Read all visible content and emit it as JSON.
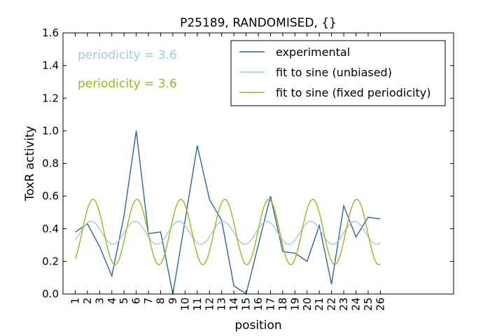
{
  "chart_data": {
    "type": "line",
    "title": "P25189, RANDOMISED, {}",
    "xlabel": "position",
    "ylabel": "ToxR activity",
    "xlim": [
      0,
      32
    ],
    "ylim": [
      0.0,
      1.6
    ],
    "x_ticks": [
      1,
      2,
      3,
      4,
      5,
      6,
      7,
      8,
      9,
      10,
      11,
      12,
      13,
      14,
      15,
      16,
      17,
      18,
      19,
      20,
      21,
      22,
      23,
      24,
      25,
      26
    ],
    "x_tick_labels": [
      "1",
      "2",
      "3",
      "4",
      "5",
      "6",
      "7",
      "8",
      "9",
      "10",
      "11",
      "12",
      "13",
      "14",
      "15",
      "16",
      "17",
      "18",
      "19",
      "20",
      "21",
      "22",
      "23",
      "24",
      "25",
      "26"
    ],
    "y_ticks": [
      0.0,
      0.2,
      0.4,
      0.6,
      0.8,
      1.0,
      1.2,
      1.4,
      1.6
    ],
    "y_tick_labels": [
      "0.0",
      "0.2",
      "0.4",
      "0.6",
      "0.8",
      "1.0",
      "1.2",
      "1.4",
      "1.6"
    ],
    "grid": false,
    "legend_placement": "top-right",
    "annotations": [
      {
        "text": "periodicity = 3.6",
        "color": "#9ecae1"
      },
      {
        "text": "periodicity = 3.6",
        "color": "#a1b41a"
      }
    ],
    "series": [
      {
        "name": "experimental",
        "color": "#2a64a6",
        "x": [
          1,
          2,
          3,
          4,
          5,
          6,
          7,
          8,
          9,
          10,
          11,
          12,
          13,
          14,
          15,
          16,
          17,
          18,
          19,
          20,
          21,
          22,
          23,
          24,
          25,
          26
        ],
        "values": [
          0.38,
          0.43,
          0.29,
          0.11,
          0.48,
          1.0,
          0.37,
          0.38,
          0.0,
          0.45,
          0.91,
          0.58,
          0.45,
          0.05,
          0.0,
          0.3,
          0.6,
          0.26,
          0.25,
          0.2,
          0.42,
          0.06,
          0.54,
          0.35,
          0.47,
          0.46
        ]
      },
      {
        "name": "fit to sine (unbiased)",
        "color": "#9ecae1",
        "model": {
          "type": "sine",
          "mean": 0.375,
          "amplitude": 0.07,
          "periodicity": 3.6,
          "phase_deg": -140
        },
        "x_range": [
          1,
          26
        ]
      },
      {
        "name": "fit to sine (fixed periodicity)",
        "color": "#a1b41a",
        "model": {
          "type": "sine",
          "mean": 0.38,
          "amplitude": 0.2,
          "periodicity": 3.6,
          "phase_deg": -156
        },
        "x_range": [
          1,
          26
        ]
      }
    ]
  }
}
